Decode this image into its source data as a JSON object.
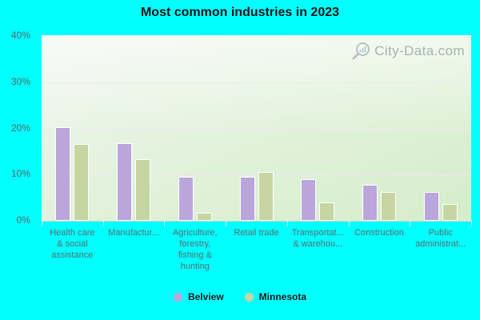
{
  "title": "Most common industries in 2023",
  "watermark": {
    "text": "City-Data.com",
    "icon": "magnifier-bar-chart-icon"
  },
  "colors": {
    "page_background": "#00ffff",
    "belview_bar": "#bba6dc",
    "minnesota_bar": "#c6d6a2",
    "bar_border": "#ffffff",
    "axis_text": "#54696a",
    "title_text": "#14181b",
    "legend_text": "#1c1c1c",
    "watermark_text": "#6e7d84"
  },
  "chart_data": {
    "type": "bar",
    "title": "Most common industries in 2023",
    "categories": [
      "Health care & social assistance",
      "Manufacturing",
      "Agriculture, forestry, fishing & hunting",
      "Retail trade",
      "Transportation & warehousing",
      "Construction",
      "Public administration"
    ],
    "category_display_labels": [
      "Health care\n& social\nassistance",
      "Manufactur...",
      "Agriculture,\nforestry,\nfishing &\nhunting",
      "Retail trade",
      "Transportat...\n& warehou...",
      "Construction",
      "Public\nadministrat..."
    ],
    "series": [
      {
        "name": "Belview",
        "color": "#bba6dc",
        "values": [
          20.3,
          16.8,
          9.6,
          9.6,
          9.0,
          7.8,
          6.3
        ]
      },
      {
        "name": "Minnesota",
        "color": "#c6d6a2",
        "values": [
          16.7,
          13.4,
          1.8,
          10.5,
          3.9,
          6.3,
          3.6
        ]
      }
    ],
    "xlabel": "",
    "ylabel": "",
    "ylim": [
      0,
      40
    ],
    "yticks": [
      "0%",
      "10%",
      "20%",
      "30%",
      "40%"
    ],
    "grid": true,
    "legend_position": "bottom"
  },
  "legend": {
    "items": [
      {
        "label": "Belview",
        "color": "#bba6dc"
      },
      {
        "label": "Minnesota",
        "color": "#c6d6a2"
      }
    ]
  }
}
